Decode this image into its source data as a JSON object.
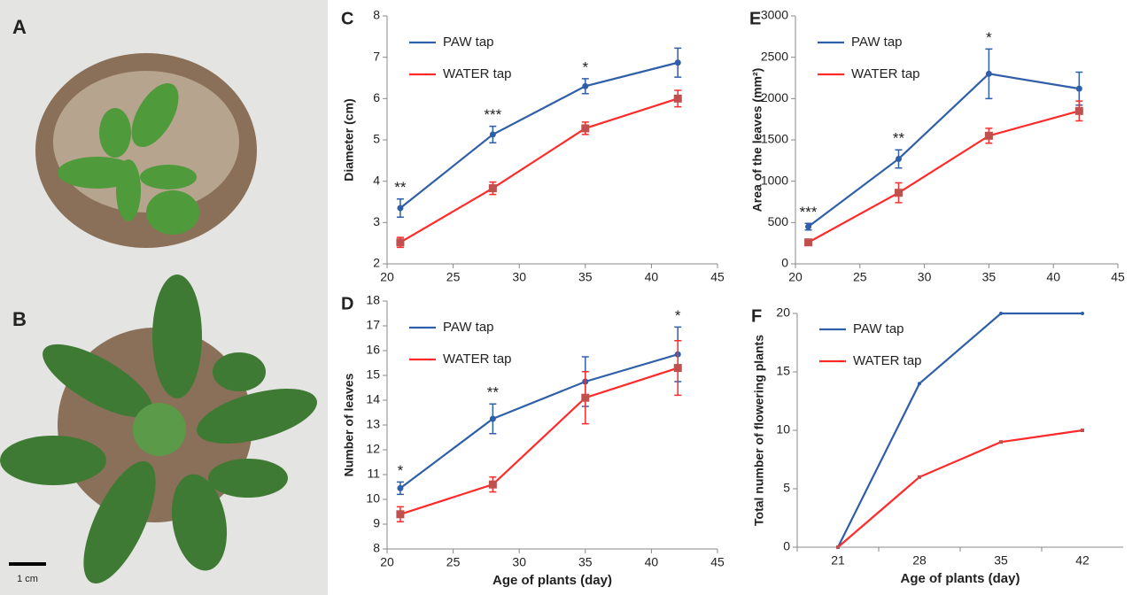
{
  "photos": {
    "panels": [
      "A",
      "B"
    ],
    "scale_bar": "1 cm"
  },
  "chart_data": [
    {
      "type": "line",
      "panel": "C",
      "ylabel": "Diameter (cm)",
      "x": [
        21,
        28,
        35,
        42
      ],
      "xlim": [
        20,
        45
      ],
      "xticks": [
        20,
        25,
        30,
        35,
        40,
        45
      ],
      "ylim": [
        2,
        8
      ],
      "yticks": [
        2,
        3,
        4,
        5,
        6,
        7,
        8
      ],
      "series": [
        {
          "name": "PAW tap",
          "color": "#2f5fa8",
          "values": [
            3.35,
            5.13,
            6.3,
            6.87
          ],
          "errors": [
            0.22,
            0.2,
            0.18,
            0.35
          ]
        },
        {
          "name": "WATER tap",
          "color": "#ff2a2a",
          "values": [
            2.52,
            3.83,
            5.28,
            6.0
          ],
          "errors": [
            0.12,
            0.15,
            0.15,
            0.2
          ]
        }
      ],
      "annotations": [
        {
          "text": "**",
          "x": 21
        },
        {
          "text": "***",
          "x": 28
        },
        {
          "text": "*",
          "x": 35
        }
      ]
    },
    {
      "type": "line",
      "panel": "E",
      "ylabel": "Area of the leaves (mm²)",
      "x": [
        21,
        28,
        35,
        42
      ],
      "xlim": [
        20,
        45
      ],
      "xticks": [
        20,
        25,
        30,
        35,
        40,
        45
      ],
      "ylim": [
        0,
        3000
      ],
      "yticks": [
        0,
        500,
        1000,
        1500,
        2000,
        2500,
        3000
      ],
      "series": [
        {
          "name": "PAW tap",
          "color": "#2f5fa8",
          "values": [
            450,
            1270,
            2300,
            2120
          ],
          "errors": [
            40,
            110,
            300,
            200
          ]
        },
        {
          "name": "WATER tap",
          "color": "#ff2a2a",
          "values": [
            260,
            860,
            1550,
            1850
          ],
          "errors": [
            20,
            120,
            90,
            120
          ]
        }
      ],
      "annotations": [
        {
          "text": "***",
          "x": 21
        },
        {
          "text": "**",
          "x": 28
        },
        {
          "text": "*",
          "x": 35
        }
      ]
    },
    {
      "type": "line",
      "panel": "D",
      "ylabel": "Number of leaves",
      "xlabel": "Age of plants (day)",
      "x": [
        21,
        28,
        35,
        42
      ],
      "xlim": [
        20,
        45
      ],
      "xticks": [
        20,
        25,
        30,
        35,
        40,
        45
      ],
      "ylim": [
        8,
        18
      ],
      "yticks": [
        8,
        9,
        10,
        11,
        12,
        13,
        14,
        15,
        16,
        17,
        18
      ],
      "series": [
        {
          "name": "PAW tap",
          "color": "#2f5fa8",
          "values": [
            10.45,
            13.25,
            14.75,
            15.85
          ],
          "errors": [
            0.25,
            0.6,
            1.0,
            1.1
          ]
        },
        {
          "name": "WATER tap",
          "color": "#ff2a2a",
          "values": [
            9.4,
            10.6,
            14.1,
            15.3
          ],
          "errors": [
            0.3,
            0.3,
            1.05,
            1.1
          ]
        }
      ],
      "annotations": [
        {
          "text": "*",
          "x": 21
        },
        {
          "text": "**",
          "x": 28
        },
        {
          "text": "*",
          "x": 42
        }
      ]
    },
    {
      "type": "line",
      "panel": "F",
      "ylabel": "Total number of flowering plants",
      "xlabel": "Age of plants (day)",
      "categories": [
        "21",
        "28",
        "35",
        "42"
      ],
      "ylim": [
        0,
        20
      ],
      "yticks": [
        0,
        5,
        10,
        15,
        20
      ],
      "series": [
        {
          "name": "PAW tap",
          "color": "#2f5fa8",
          "values": [
            0,
            14,
            20,
            20
          ]
        },
        {
          "name": "WATER tap",
          "color": "#ff2a2a",
          "values": [
            0,
            6,
            9,
            10
          ]
        }
      ]
    }
  ]
}
